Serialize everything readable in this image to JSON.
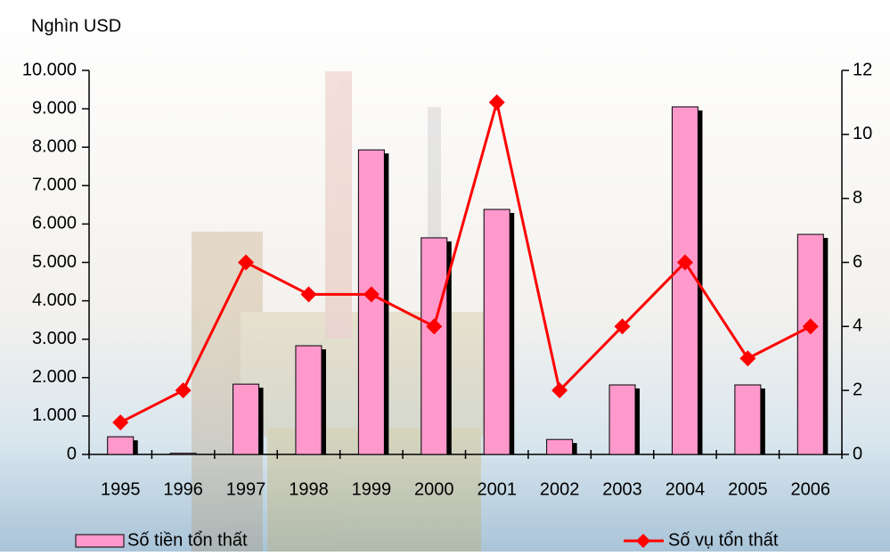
{
  "chart_data": {
    "type": "bar_line",
    "y_label": "Nghìn USD",
    "categories": [
      "1995",
      "1996",
      "1997",
      "1998",
      "1999",
      "2000",
      "2001",
      "2002",
      "2003",
      "2004",
      "2005",
      "2006"
    ],
    "series": [
      {
        "name": "Số tiền tổn thất",
        "type": "bar",
        "color": "#ff99cc",
        "values": [
          460,
          30,
          1830,
          2830,
          7930,
          5640,
          6380,
          390,
          1810,
          9050,
          1810,
          5730
        ]
      },
      {
        "name": "Số vụ tổn thất",
        "type": "line",
        "axis": "y2",
        "color": "#ff0000",
        "values": [
          1,
          2,
          6,
          5,
          5,
          4,
          11,
          2,
          4,
          6,
          3,
          4
        ]
      }
    ],
    "ylim": [
      0,
      10000
    ],
    "yticks": [
      0,
      {
        "value": 1000,
        "label": "1.000"
      },
      {
        "value": 2000,
        "label": "2.000"
      },
      {
        "value": 3000,
        "label": "3.000"
      },
      {
        "value": 4000,
        "label": "4.000"
      },
      {
        "value": 5000,
        "label": "5.000"
      },
      {
        "value": 6000,
        "label": "6.000"
      },
      {
        "value": 7000,
        "label": "7.000"
      },
      {
        "value": 8000,
        "label": "8.000"
      },
      {
        "value": 9000,
        "label": "9.000"
      },
      {
        "value": 10000,
        "label": "10.000"
      }
    ],
    "y2lim": [
      0,
      12
    ],
    "y2ticks": [
      0,
      2,
      4,
      6,
      8,
      10,
      12
    ],
    "grid": false
  }
}
